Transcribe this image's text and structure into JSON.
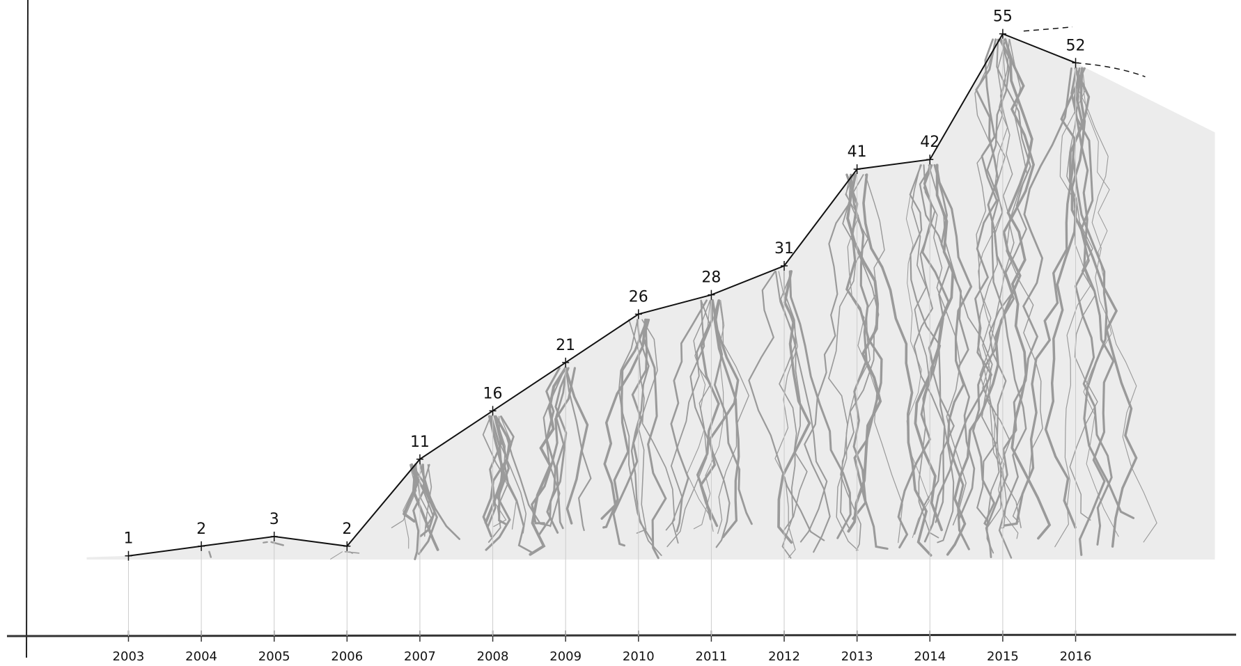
{
  "chart_data": {
    "type": "line",
    "x": [
      2003,
      2004,
      2005,
      2006,
      2007,
      2008,
      2009,
      2010,
      2011,
      2012,
      2013,
      2014,
      2015,
      2016
    ],
    "values": [
      1,
      2,
      3,
      2,
      11,
      16,
      21,
      26,
      28,
      31,
      41,
      42,
      55,
      52
    ],
    "xlim": [
      2001.6,
      2018.27
    ],
    "ylim": [
      -7.3,
      58.5
    ],
    "color": "#111111"
  }
}
